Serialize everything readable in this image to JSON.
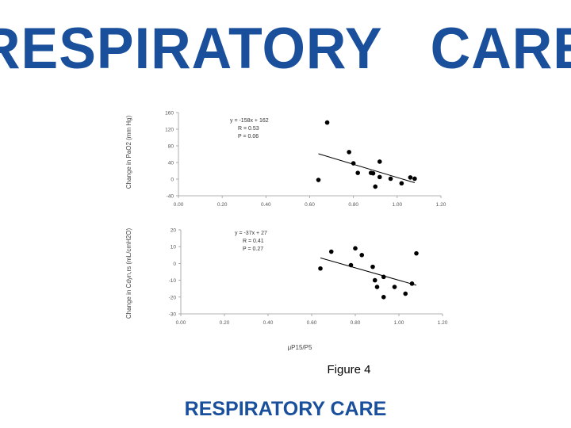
{
  "header": {
    "logo_text": "RESPIRATORY   CARE"
  },
  "footer": {
    "logo_text": "RESPIRATORY CARE"
  },
  "caption": "Figure 4",
  "chart_data": [
    {
      "type": "scatter",
      "ylabel": "Change in PaO2 (mm Hg)",
      "xlim": [
        0,
        1.2
      ],
      "ylim": [
        -40,
        160
      ],
      "x_ticks": [
        "0.00",
        "0.20",
        "0.40",
        "0.60",
        "0.80",
        "1.00",
        "1.20"
      ],
      "y_ticks": [
        "-40",
        "0",
        "40",
        "80",
        "120",
        "160"
      ],
      "annotation": [
        "y = -158x + 162",
        "R = 0.53",
        "P = 0.06"
      ],
      "trendline": {
        "slope": -158,
        "intercept": 162,
        "x_range": [
          0.64,
          1.08
        ]
      },
      "points": [
        {
          "x": 0.64,
          "y": -2
        },
        {
          "x": 0.68,
          "y": 136
        },
        {
          "x": 0.78,
          "y": 65
        },
        {
          "x": 0.8,
          "y": 38
        },
        {
          "x": 0.82,
          "y": 15
        },
        {
          "x": 0.88,
          "y": 15
        },
        {
          "x": 0.89,
          "y": 14
        },
        {
          "x": 0.9,
          "y": -18
        },
        {
          "x": 0.92,
          "y": 42
        },
        {
          "x": 0.92,
          "y": 5
        },
        {
          "x": 0.97,
          "y": 1
        },
        {
          "x": 1.02,
          "y": -10
        },
        {
          "x": 1.06,
          "y": 4
        },
        {
          "x": 1.08,
          "y": 1
        }
      ]
    },
    {
      "type": "scatter",
      "ylabel": "Change in Cdyn,rs (mL/cmH2O)",
      "xlabel": "μP15/P5",
      "xlim": [
        0,
        1.2
      ],
      "ylim": [
        -30,
        20
      ],
      "x_ticks": [
        "0.00",
        "0.20",
        "0.40",
        "0.60",
        "0.80",
        "1.00",
        "1.20"
      ],
      "y_ticks": [
        "-30",
        "-20",
        "-10",
        "0",
        "10",
        "20"
      ],
      "annotation": [
        "y = -37x + 27",
        "R = 0.41",
        "P = 0.27"
      ],
      "trendline": {
        "slope": -37,
        "intercept": 27,
        "x_range": [
          0.64,
          1.08
        ]
      },
      "points": [
        {
          "x": 0.64,
          "y": -3
        },
        {
          "x": 0.69,
          "y": 7
        },
        {
          "x": 0.78,
          "y": -1
        },
        {
          "x": 0.8,
          "y": 9
        },
        {
          "x": 0.83,
          "y": 5
        },
        {
          "x": 0.88,
          "y": -2
        },
        {
          "x": 0.89,
          "y": -10
        },
        {
          "x": 0.9,
          "y": -14
        },
        {
          "x": 0.93,
          "y": -8
        },
        {
          "x": 0.93,
          "y": -20
        },
        {
          "x": 0.98,
          "y": -14
        },
        {
          "x": 1.03,
          "y": -18
        },
        {
          "x": 1.06,
          "y": -12
        },
        {
          "x": 1.08,
          "y": 6
        }
      ]
    }
  ]
}
